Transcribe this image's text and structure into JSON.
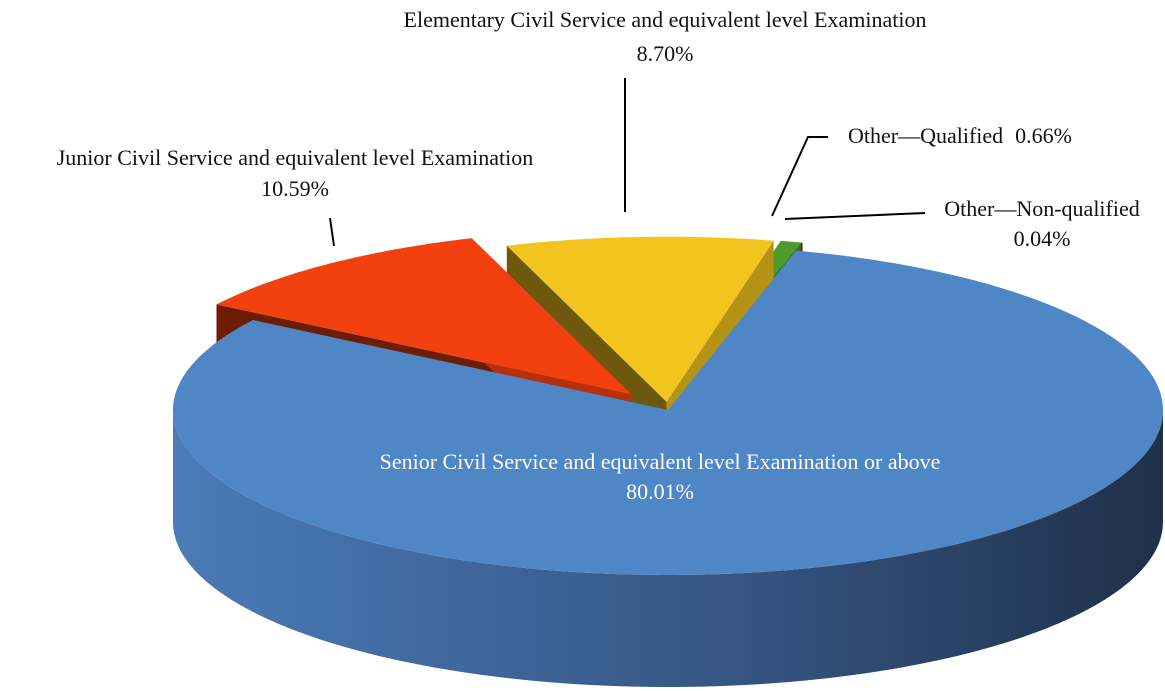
{
  "chart_data": {
    "type": "pie3d",
    "categories": [
      "Senior Civil Service and equivalent level Examination or above",
      "Junior Civil Service and equivalent level Examination",
      "Elementary Civil Service and equivalent level Examination",
      "Other—Qualified",
      "Other—Non-qualified"
    ],
    "values": [
      80.01,
      10.59,
      8.7,
      0.66,
      0.04
    ],
    "value_labels": [
      "80.01%",
      "10.59%",
      "8.70%",
      "0.66%",
      "0.04%"
    ],
    "colors": [
      "#4f86c6",
      "#f2400e",
      "#f2c41e",
      "#4e9a2a",
      "#8e1020"
    ]
  }
}
